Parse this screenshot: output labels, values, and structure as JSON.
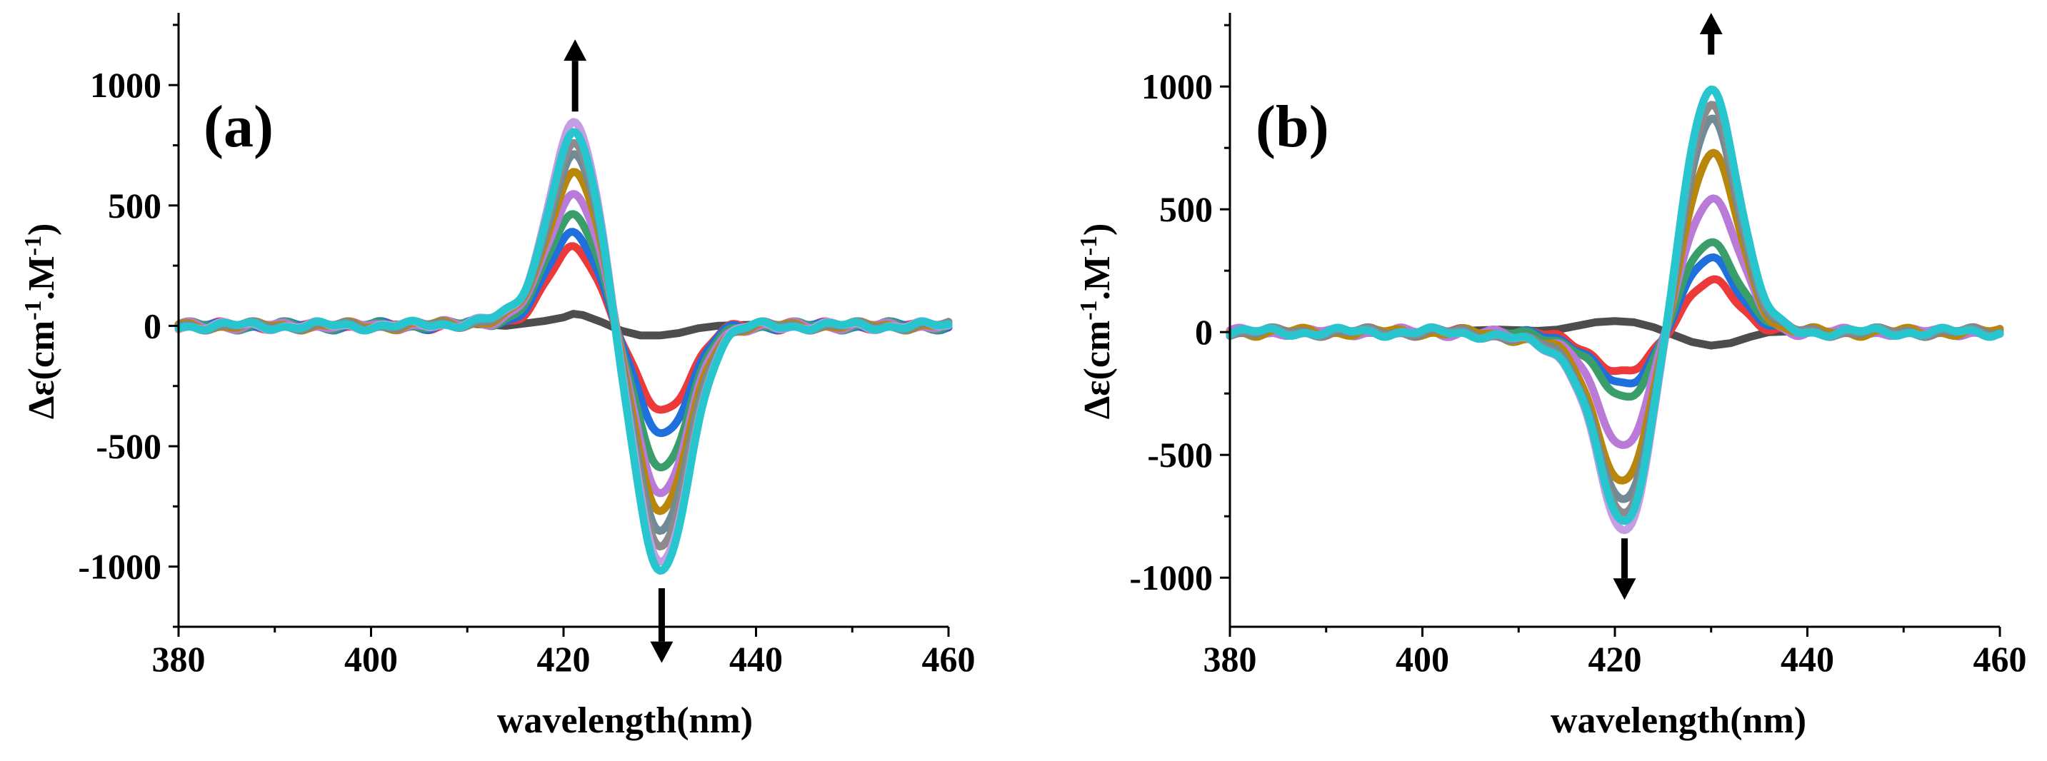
{
  "chart_data": [
    {
      "type": "line",
      "panel_label": "(a)",
      "xlabel": "wavelength(nm)",
      "ylabel": "Δε(cm-1.M-1)",
      "xlim": [
        380,
        460
      ],
      "ylim": [
        -1250,
        1300
      ],
      "x_ticks": [
        380,
        400,
        420,
        440,
        460
      ],
      "y_ticks": [
        -1000,
        -500,
        0,
        500,
        1000
      ],
      "arrows": [
        {
          "direction": "up",
          "x": 421.2,
          "y_from": 890,
          "y_to": 1190
        },
        {
          "direction": "down",
          "x": 430.2,
          "y_from": -1090,
          "y_to": -1400
        }
      ],
      "series": [
        {
          "name": "s0",
          "color": "#4d4d4d",
          "type": "initial",
          "x": [
            380,
            384,
            388,
            392,
            396,
            400,
            404,
            408,
            410,
            414,
            418,
            420,
            421,
            422,
            424,
            426,
            428,
            430,
            432,
            434,
            436,
            440,
            444,
            448,
            452,
            456,
            460
          ],
          "y": [
            0,
            -5,
            5,
            0,
            -5,
            0,
            8,
            5,
            10,
            0,
            20,
            35,
            50,
            45,
            15,
            -20,
            -40,
            -40,
            -30,
            -10,
            0,
            5,
            0,
            5,
            -5,
            5,
            0
          ]
        },
        {
          "name": "s1",
          "color": "#ec3a3a",
          "pos": 310,
          "neg": -360
        },
        {
          "name": "s2",
          "color": "#1f6fdc",
          "pos": 375,
          "neg": -450
        },
        {
          "name": "s3",
          "color": "#3a9e6b",
          "pos": 455,
          "neg": -585
        },
        {
          "name": "s4",
          "color": "#b97ad8",
          "pos": 540,
          "neg": -690
        },
        {
          "name": "s5",
          "color": "#b8860b",
          "pos": 625,
          "neg": -770
        },
        {
          "name": "s6",
          "color": "#708a96",
          "pos": 690,
          "neg": -860
        },
        {
          "name": "s7",
          "color": "#8b8b8b",
          "pos": 730,
          "neg": -930
        },
        {
          "name": "s8",
          "color": "#c59de3",
          "pos": 810,
          "neg": -1000
        },
        {
          "name": "s9",
          "color": "#27c5cd",
          "pos": 770,
          "neg": -1035
        }
      ],
      "pos_center": 421.2,
      "pos_width": 2.7,
      "neg_center": 430.2,
      "neg_width": 2.8,
      "tail_amplitude": 0.06
    },
    {
      "type": "line",
      "panel_label": "(b)",
      "xlabel": "wavelength(nm)",
      "ylabel": "Δε(cm-1.M-1)",
      "xlim": [
        380,
        460
      ],
      "ylim": [
        -1200,
        1300
      ],
      "x_ticks": [
        380,
        400,
        420,
        440,
        460
      ],
      "y_ticks": [
        -1000,
        -500,
        0,
        500,
        1000
      ],
      "arrows": [
        {
          "direction": "up",
          "x": 430.0,
          "y_from": 1130,
          "y_to": 1300
        },
        {
          "direction": "down",
          "x": 421.0,
          "y_from": -840,
          "y_to": -1090
        }
      ],
      "series": [
        {
          "name": "s0",
          "color": "#4d4d4d",
          "type": "initial",
          "x": [
            380,
            384,
            388,
            392,
            396,
            400,
            404,
            408,
            412,
            414,
            416,
            418,
            420,
            422,
            424,
            426,
            428,
            430,
            432,
            434,
            436,
            440,
            444,
            448,
            452,
            456,
            460
          ],
          "y": [
            0,
            -5,
            5,
            0,
            -5,
            0,
            5,
            10,
            5,
            10,
            25,
            40,
            45,
            40,
            20,
            -10,
            -40,
            -55,
            -45,
            -20,
            0,
            5,
            0,
            5,
            -5,
            5,
            0
          ]
        },
        {
          "name": "s1",
          "color": "#ec3a3a",
          "pos": 200,
          "neg": -165
        },
        {
          "name": "s2",
          "color": "#1f6fdc",
          "pos": 295,
          "neg": -210
        },
        {
          "name": "s3",
          "color": "#3a9e6b",
          "pos": 365,
          "neg": -255
        },
        {
          "name": "s4",
          "color": "#b97ad8",
          "pos": 555,
          "neg": -430
        },
        {
          "name": "s5",
          "color": "#b8860b",
          "pos": 725,
          "neg": -580
        },
        {
          "name": "s6",
          "color": "#708a96",
          "pos": 860,
          "neg": -660
        },
        {
          "name": "s7",
          "color": "#8b8b8b",
          "pos": 920,
          "neg": -710
        },
        {
          "name": "s8",
          "color": "#c59de3",
          "pos": 990,
          "neg": -770
        },
        {
          "name": "s9",
          "color": "#27c5cd",
          "pos": 990,
          "neg": -735
        }
      ],
      "pos_center": 430.0,
      "pos_width": 2.8,
      "neg_center": 421.0,
      "neg_width": 2.7,
      "tail_amplitude": 0.1
    }
  ]
}
